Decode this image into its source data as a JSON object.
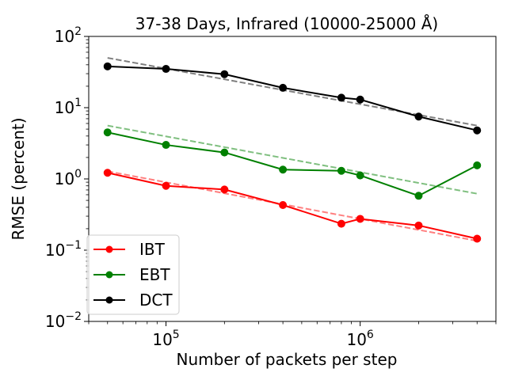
{
  "chart_data": {
    "type": "line",
    "title": "37-38 Days, Infrared (10000-25000 Å)",
    "xlabel": "Number of packets per step",
    "ylabel": "RMSE (percent)",
    "xscale": "log",
    "yscale": "log",
    "xlim": [
      40000,
      5000000
    ],
    "ylim": [
      0.01,
      100
    ],
    "x_ticks": [
      {
        "value": 100000,
        "base": "10",
        "exp": "5"
      },
      {
        "value": 1000000,
        "base": "10",
        "exp": "6"
      }
    ],
    "y_ticks": [
      {
        "value": 0.01,
        "base": "10",
        "exp": "−2"
      },
      {
        "value": 0.1,
        "base": "10",
        "exp": "−1"
      },
      {
        "value": 1,
        "base": "10",
        "exp": "0"
      },
      {
        "value": 10,
        "base": "10",
        "exp": "1"
      },
      {
        "value": 100,
        "base": "10",
        "exp": "2"
      }
    ],
    "legend_position": "lower-left",
    "series": [
      {
        "name": "IBT",
        "color": "#ff0000",
        "x": [
          50000,
          100000,
          200000,
          400000,
          800000,
          1000000,
          2000000,
          4000000
        ],
        "values": [
          1.22,
          0.8,
          0.71,
          0.43,
          0.235,
          0.275,
          0.222,
          0.145
        ],
        "fit": {
          "x": [
            50000,
            4000000
          ],
          "values": [
            1.28,
            0.135
          ]
        }
      },
      {
        "name": "EBT",
        "color": "#008000",
        "x": [
          50000,
          100000,
          200000,
          400000,
          800000,
          1000000,
          2000000,
          4000000
        ],
        "values": [
          4.5,
          3.0,
          2.35,
          1.35,
          1.3,
          1.12,
          0.58,
          1.55
        ],
        "fit": {
          "x": [
            50000,
            4000000
          ],
          "values": [
            5.6,
            0.62
          ]
        }
      },
      {
        "name": "DCT",
        "color": "#000000",
        "x": [
          50000,
          100000,
          200000,
          400000,
          800000,
          1000000,
          2000000,
          4000000
        ],
        "values": [
          38,
          35,
          29.5,
          19,
          13.8,
          13,
          7.5,
          4.8
        ],
        "fit": {
          "x": [
            50000,
            4000000
          ],
          "values": [
            50,
            5.6
          ]
        }
      }
    ]
  }
}
